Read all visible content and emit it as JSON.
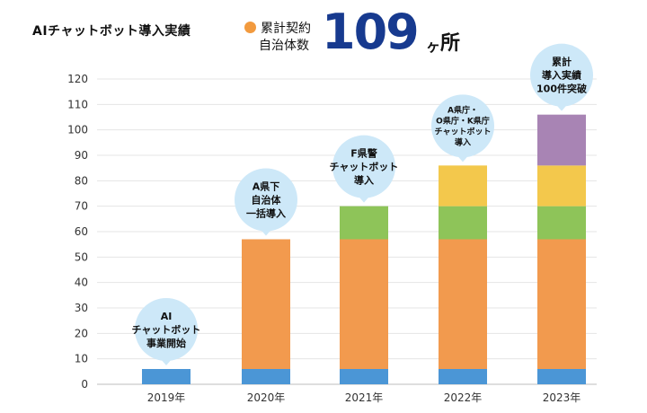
{
  "header": {
    "title": "AIチャットボット導入実績",
    "label_line1": "累計契約",
    "label_line2": "自治体数",
    "count": "109",
    "unit_small": "ヶ",
    "unit": "所"
  },
  "colors": {
    "dot": "#f29a3e",
    "count": "#173a8f",
    "bubble": "#cde8f8",
    "base": "#4b96d6",
    "orange": "#f29a4e",
    "green": "#8ec459",
    "yellow": "#f3c84c",
    "purple": "#a884b4"
  },
  "chart_data": {
    "type": "bar",
    "stacked": true,
    "categories": [
      "2019年",
      "2020年",
      "2021年",
      "2022年",
      "2023年"
    ],
    "series": [
      {
        "color": "#4b96d6",
        "values": [
          6,
          6,
          6,
          6,
          6
        ]
      },
      {
        "color": "#f29a4e",
        "values": [
          0,
          51,
          51,
          51,
          51
        ]
      },
      {
        "color": "#8ec459",
        "values": [
          0,
          0,
          13,
          13,
          13
        ]
      },
      {
        "color": "#f3c84c",
        "values": [
          0,
          0,
          0,
          16,
          16
        ]
      },
      {
        "color": "#a884b4",
        "values": [
          0,
          0,
          0,
          0,
          20
        ]
      }
    ],
    "ylim": [
      0,
      120
    ],
    "yticks": [
      0,
      10,
      20,
      30,
      40,
      50,
      60,
      70,
      80,
      90,
      100,
      110,
      120
    ],
    "grid": true,
    "annotations": [
      [
        "AI",
        "チャットボット",
        "事業開始"
      ],
      [
        "A県下",
        "自治体",
        "一括導入"
      ],
      [
        "F県警",
        "チャットボット",
        "導入"
      ],
      [
        "A県庁・",
        "O県庁・K県庁",
        "チャットボット",
        "導入"
      ],
      [
        "累計",
        "導入実績",
        "100件突破"
      ]
    ]
  }
}
